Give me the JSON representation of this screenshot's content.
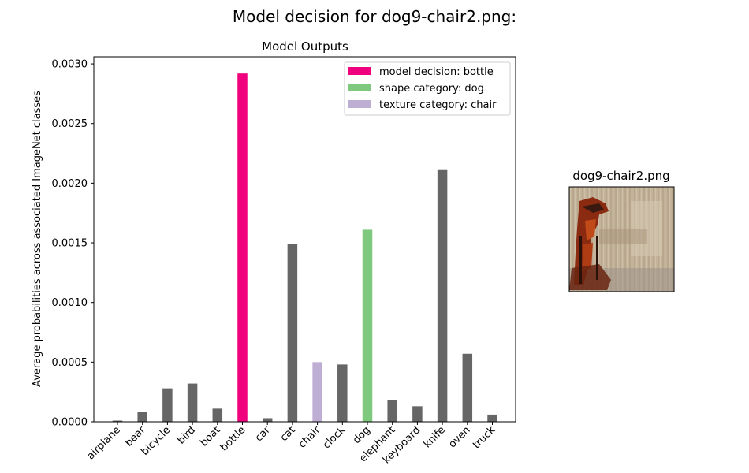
{
  "figure": {
    "suptitle": "Model decision for dog9-chair2.png:"
  },
  "chart_data": {
    "type": "bar",
    "title": "Model Outputs",
    "xlabel": "",
    "ylabel": "Average probabilities across associated ImageNet classes",
    "ylim": [
      0,
      0.00306
    ],
    "yticks": [
      "0.0000",
      "0.0005",
      "0.0010",
      "0.0015",
      "0.0020",
      "0.0025",
      "0.0030"
    ],
    "ytick_values": [
      0,
      0.0005,
      0.001,
      0.0015,
      0.002,
      0.0025,
      0.003
    ],
    "categories": [
      "airplane",
      "bear",
      "bicycle",
      "bird",
      "boat",
      "bottle",
      "car",
      "cat",
      "chair",
      "clock",
      "dog",
      "elephant",
      "keyboard",
      "knife",
      "oven",
      "truck"
    ],
    "values": [
      1e-05,
      8e-05,
      0.00028,
      0.00032,
      0.00011,
      0.00292,
      3e-05,
      0.00149,
      0.0005,
      0.00048,
      0.00161,
      0.00018,
      0.00013,
      0.00211,
      0.00057,
      6e-05
    ],
    "bar_colors": [
      "#666666",
      "#666666",
      "#666666",
      "#666666",
      "#666666",
      "#f0027f",
      "#666666",
      "#666666",
      "#beaed4",
      "#666666",
      "#7fc97f",
      "#666666",
      "#666666",
      "#666666",
      "#666666",
      "#666666"
    ],
    "legend": {
      "placement": "upper right",
      "entries": [
        {
          "label": "model decision: bottle",
          "color": "#f0027f"
        },
        {
          "label": "shape category: dog",
          "color": "#7fc97f"
        },
        {
          "label": "texture category: chair",
          "color": "#beaed4"
        }
      ]
    },
    "grid": false
  },
  "thumbnail": {
    "title": "dog9-chair2.png"
  }
}
